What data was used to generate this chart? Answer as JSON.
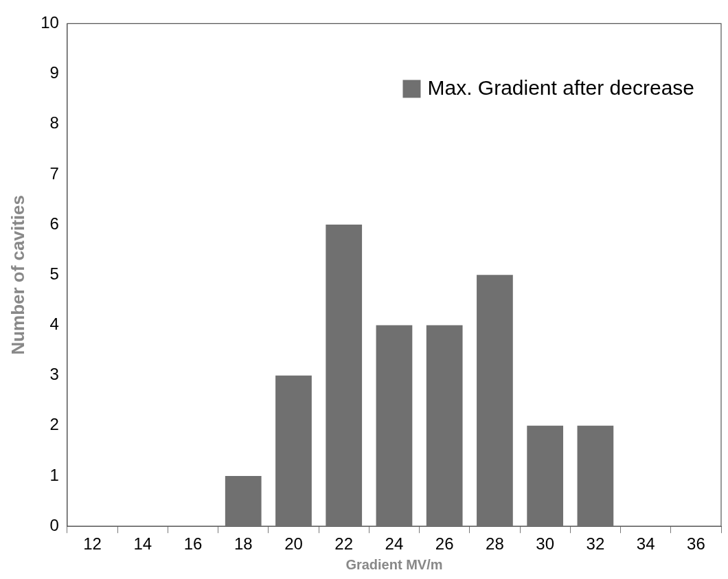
{
  "chart_data": {
    "type": "bar",
    "xlabel": "Gradient MV/m",
    "ylabel": "Number of cavities",
    "categories": [
      "12",
      "14",
      "16",
      "18",
      "20",
      "22",
      "24",
      "26",
      "28",
      "30",
      "32",
      "34",
      "36"
    ],
    "series": [
      {
        "name": "Max. Gradient after decrease",
        "color": "#707070",
        "values": [
          0,
          0,
          0,
          1,
          3,
          6,
          4,
          4,
          5,
          2,
          2,
          0,
          0
        ]
      }
    ],
    "ylim": [
      0,
      10
    ],
    "yticks": [
      0,
      1,
      2,
      3,
      4,
      5,
      6,
      7,
      8,
      9,
      10
    ],
    "grid": false,
    "legend": "top right"
  }
}
